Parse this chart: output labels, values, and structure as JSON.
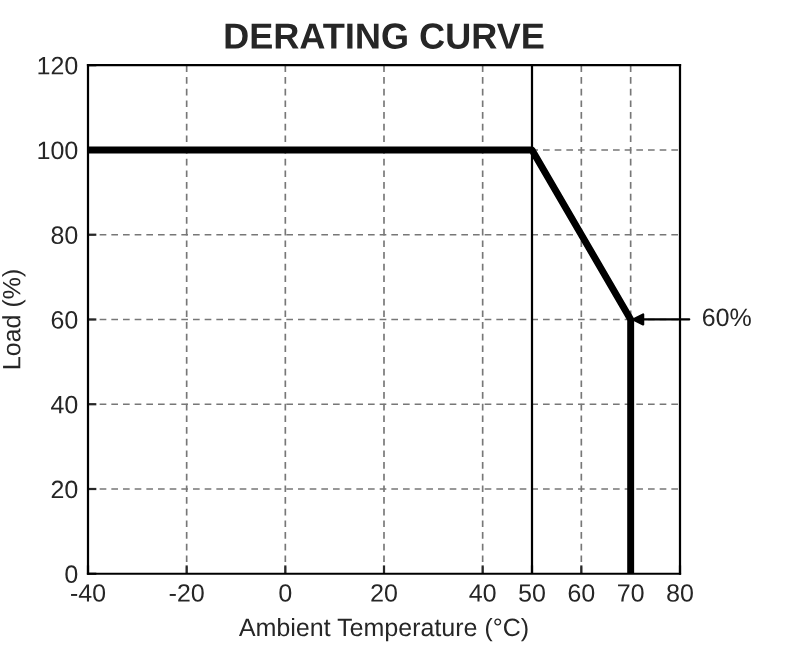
{
  "chart_data": {
    "type": "line",
    "title": "DERATING CURVE",
    "xlabel": "Ambient Temperature (°C)",
    "ylabel": "Load (%)",
    "series": [
      {
        "color": "#000000",
        "x": [
          -40,
          50,
          70,
          70
        ],
        "values": [
          100,
          100,
          60,
          0
        ]
      }
    ],
    "xlim": [
      -40,
      80
    ],
    "xticks": [
      -40,
      -20,
      0,
      20,
      40,
      50,
      60,
      70,
      80
    ],
    "ylim": [
      0,
      120
    ],
    "yticks": [
      0,
      20,
      40,
      60,
      80,
      100,
      120
    ],
    "grid": true,
    "line_style": "solid",
    "marker": "none",
    "ref_lines": [
      {
        "axis": "x",
        "value": 50,
        "label": null,
        "color": "#000000",
        "line_style": "solid"
      }
    ],
    "annotations": [
      {
        "text": "60%",
        "x": 70,
        "y": 60
      }
    ]
  }
}
